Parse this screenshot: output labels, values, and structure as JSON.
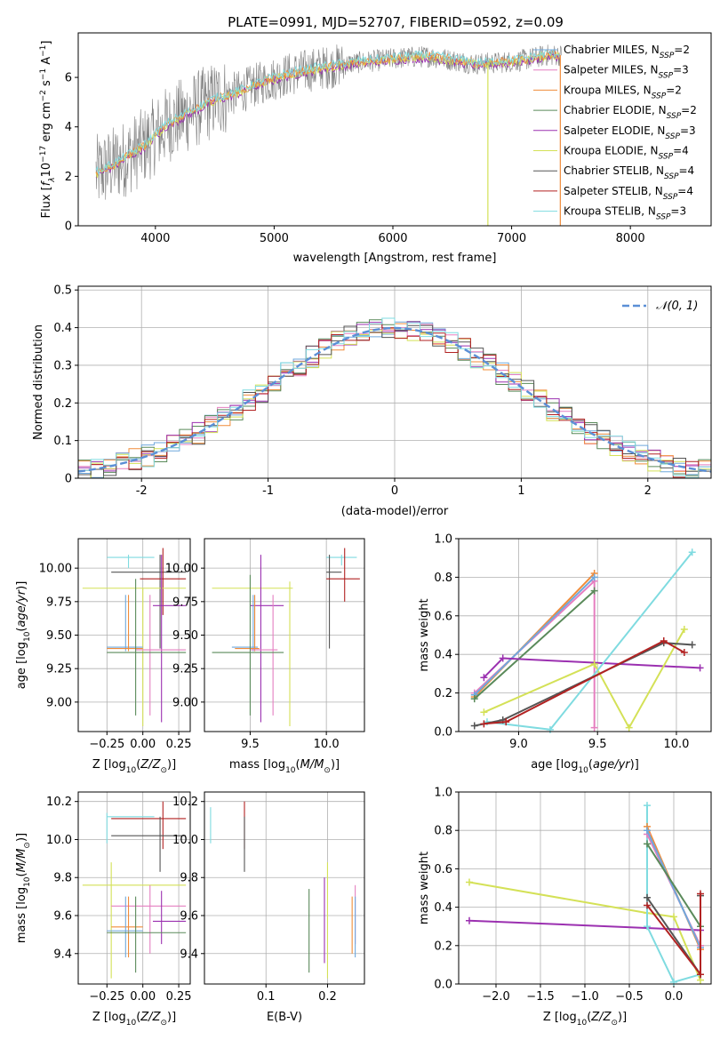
{
  "figure": {
    "title": "PLATE=0991, MJD=52707, FIBERID=0592, z=0.09"
  },
  "colors": {
    "chabrier_miles": "#6fa8dc",
    "salpeter_miles": "#e57fc0",
    "kroupa_miles": "#f08c3a",
    "chabrier_elodie": "#5a8a5a",
    "salpeter_elodie": "#9b30b0",
    "kroupa_elodie": "#d4e157",
    "chabrier_stelib": "#555555",
    "salpeter_stelib": "#b22222",
    "kroupa_stelib": "#7fdbe0",
    "data": "#808080",
    "normal": "#5b8fd6"
  },
  "chart_data": [
    {
      "id": "spectrum",
      "type": "line",
      "xlabel": "wavelength [Angstrom, rest frame]",
      "ylabel": "Flux [f_λ10^-17 erg cm^-2 s^-1 A^-1]",
      "xlim": [
        3350,
        8680
      ],
      "ylim": [
        0,
        7.8
      ],
      "xticks": [
        4000,
        5000,
        6000,
        7000,
        8000
      ],
      "yticks": [
        0,
        2,
        4,
        6
      ],
      "grid": false,
      "legend_position": "right",
      "legend": [
        {
          "label": "Chabrier MILES, N_SSP=2",
          "color_key": "chabrier_miles"
        },
        {
          "label": "Salpeter MILES, N_SSP=3",
          "color_key": "salpeter_miles"
        },
        {
          "label": "Kroupa MILES, N_SSP=2",
          "color_key": "kroupa_miles"
        },
        {
          "label": "Chabrier ELODIE, N_SSP=2",
          "color_key": "chabrier_elodie"
        },
        {
          "label": "Salpeter ELODIE, N_SSP=3",
          "color_key": "salpeter_elodie"
        },
        {
          "label": "Kroupa ELODIE, N_SSP=4",
          "color_key": "kroupa_elodie"
        },
        {
          "label": "Chabrier STELIB, N_SSP=4",
          "color_key": "chabrier_stelib"
        },
        {
          "label": "Salpeter STELIB, N_SSP=4",
          "color_key": "salpeter_stelib"
        },
        {
          "label": "Kroupa STELIB, N_SSP=3",
          "color_key": "kroupa_stelib"
        }
      ],
      "model_continuum": {
        "x": [
          3500,
          3700,
          3900,
          4100,
          4300,
          4500,
          4700,
          4900,
          5100,
          5300,
          5500,
          5700,
          5900,
          6100,
          6300,
          6500,
          6700,
          6900,
          7100,
          7300,
          7400
        ],
        "y": [
          2.1,
          2.6,
          3.2,
          4.1,
          4.6,
          5.1,
          5.4,
          5.8,
          6.1,
          6.3,
          6.45,
          6.6,
          6.7,
          6.8,
          6.85,
          6.7,
          6.55,
          6.6,
          6.7,
          6.9,
          6.9
        ]
      }
    },
    {
      "id": "residuals",
      "type": "histogram",
      "xlabel": "(data-model)/error",
      "ylabel": "Normed distribution",
      "xlim": [
        -2.5,
        2.5
      ],
      "ylim": [
        0,
        0.51
      ],
      "xticks": [
        -2,
        -1,
        0,
        1,
        2
      ],
      "yticks": [
        0.0,
        0.1,
        0.2,
        0.3,
        0.4,
        0.5
      ],
      "grid": true,
      "legend_position": "top-right",
      "legend": [
        {
          "label": "𝒩(0, 1)",
          "color_key": "normal",
          "style": "dashed"
        }
      ]
    },
    {
      "id": "age_vs_Z",
      "type": "errorbar",
      "xlabel": "Z [log10(Z/Z⊙)]",
      "ylabel": "age [log10(age/yr)]",
      "xlim": [
        -0.45,
        0.33
      ],
      "ylim": [
        8.78,
        10.22
      ],
      "xticks": [
        -0.25,
        0.0,
        0.25
      ],
      "xticklabels": [
        "−0.25",
        "0.00",
        "0.25"
      ],
      "yticks": [
        9.0,
        9.25,
        9.5,
        9.75,
        10.0
      ],
      "yticklabels": [
        "9.00",
        "9.25",
        "9.50",
        "9.75",
        "10.00"
      ],
      "grid": true,
      "points": [
        {
          "c": "kroupa_stelib",
          "x": -0.1,
          "xe": [
            -0.25,
            0.08
          ],
          "y": 10.08,
          "ye": [
            10.0,
            10.1
          ]
        },
        {
          "c": "chabrier_stelib",
          "x": 0.12,
          "xe": [
            -0.22,
            0.3
          ],
          "y": 9.97,
          "ye": [
            9.4,
            10.1
          ]
        },
        {
          "c": "salpeter_stelib",
          "x": 0.14,
          "xe": [
            -0.02,
            0.3
          ],
          "y": 9.92,
          "ye": [
            9.65,
            10.15
          ]
        },
        {
          "c": "kroupa_elodie",
          "x": 0.0,
          "xe": [
            -0.42,
            0.3
          ],
          "y": 9.85,
          "ye": [
            8.82,
            9.85
          ]
        },
        {
          "c": "salpeter_elodie",
          "x": 0.13,
          "xe": [
            0.07,
            0.3
          ],
          "y": 9.72,
          "ye": [
            8.85,
            10.1
          ]
        },
        {
          "c": "chabrier_miles",
          "x": -0.12,
          "xe": [
            -0.25,
            0.0
          ],
          "y": 9.41,
          "ye": [
            9.38,
            9.8
          ]
        },
        {
          "c": "kroupa_miles",
          "x": -0.1,
          "xe": [
            -0.25,
            0.0
          ],
          "y": 9.4,
          "ye": [
            9.38,
            9.8
          ]
        },
        {
          "c": "salpeter_miles",
          "x": 0.05,
          "xe": [
            -0.05,
            0.3
          ],
          "y": 9.39,
          "ye": [
            8.9,
            9.8
          ]
        },
        {
          "c": "chabrier_elodie",
          "x": -0.05,
          "xe": [
            -0.25,
            0.3
          ],
          "y": 9.37,
          "ye": [
            8.9,
            9.92
          ]
        }
      ]
    },
    {
      "id": "age_vs_mass",
      "type": "errorbar",
      "xlabel": "mass [log10(M/M⊙)]",
      "ylabel": "",
      "xlim": [
        9.2,
        10.25
      ],
      "ylim": [
        8.78,
        10.22
      ],
      "xticks": [
        9.5,
        10.0
      ],
      "xticklabels": [
        "9.5",
        "10.0"
      ],
      "yticks": [
        9.0,
        9.25,
        9.5,
        9.75,
        10.0
      ],
      "yticklabels": [
        "9.00",
        "9.25",
        "9.50",
        "9.75",
        "10.00"
      ],
      "grid": true,
      "points": [
        {
          "c": "kroupa_stelib",
          "x": 10.1,
          "xe": [
            10.0,
            10.2
          ],
          "y": 10.08,
          "ye": [
            10.02,
            10.1
          ]
        },
        {
          "c": "chabrier_stelib",
          "x": 10.02,
          "xe": [
            10.0,
            10.1
          ],
          "y": 9.97,
          "ye": [
            9.4,
            10.1
          ]
        },
        {
          "c": "salpeter_stelib",
          "x": 10.12,
          "xe": [
            10.0,
            10.22
          ],
          "y": 9.92,
          "ye": [
            9.75,
            10.15
          ]
        },
        {
          "c": "kroupa_elodie",
          "x": 9.76,
          "xe": [
            9.25,
            9.78
          ],
          "y": 9.85,
          "ye": [
            8.82,
            9.9
          ]
        },
        {
          "c": "salpeter_elodie",
          "x": 9.57,
          "xe": [
            9.5,
            9.72
          ],
          "y": 9.72,
          "ye": [
            8.85,
            10.1
          ]
        },
        {
          "c": "chabrier_miles",
          "x": 9.52,
          "xe": [
            9.38,
            9.55
          ],
          "y": 9.41,
          "ye": [
            9.38,
            9.8
          ]
        },
        {
          "c": "kroupa_miles",
          "x": 9.53,
          "xe": [
            9.4,
            9.56
          ],
          "y": 9.4,
          "ye": [
            9.38,
            9.8
          ]
        },
        {
          "c": "salpeter_miles",
          "x": 9.65,
          "xe": [
            9.5,
            9.68
          ],
          "y": 9.39,
          "ye": [
            8.9,
            9.8
          ]
        },
        {
          "c": "chabrier_elodie",
          "x": 9.5,
          "xe": [
            9.25,
            9.72
          ],
          "y": 9.37,
          "ye": [
            8.9,
            9.95
          ]
        }
      ]
    },
    {
      "id": "weight_vs_age",
      "type": "line",
      "xlabel": "age [log10(age/yr)]",
      "ylabel": "mass weight",
      "xlim": [
        8.62,
        10.22
      ],
      "ylim": [
        0,
        1.0
      ],
      "xticks": [
        9.0,
        9.5,
        10.0
      ],
      "xticklabels": [
        "9.0",
        "9.5",
        "10.0"
      ],
      "yticks": [
        0.0,
        0.2,
        0.4,
        0.6,
        0.8,
        1.0
      ],
      "yticklabels": [
        "0.0",
        "0.2",
        "0.4",
        "0.6",
        "0.8",
        "1.0"
      ],
      "grid": true,
      "series": [
        {
          "c": "kroupa_miles",
          "x": [
            8.72,
            9.48
          ],
          "y": [
            0.18,
            0.82
          ]
        },
        {
          "c": "salpeter_miles",
          "x": [
            8.72,
            9.48,
            9.48
          ],
          "y": [
            0.2,
            0.78,
            0.02
          ]
        },
        {
          "c": "chabrier_miles",
          "x": [
            8.72,
            9.48
          ],
          "y": [
            0.19,
            0.8
          ]
        },
        {
          "c": "chabrier_elodie",
          "x": [
            8.72,
            9.48
          ],
          "y": [
            0.17,
            0.73
          ]
        },
        {
          "c": "salpeter_elodie",
          "x": [
            8.78,
            8.9,
            10.15
          ],
          "y": [
            0.28,
            0.38,
            0.33
          ]
        },
        {
          "c": "kroupa_elodie",
          "x": [
            8.78,
            9.48,
            9.7,
            10.05
          ],
          "y": [
            0.1,
            0.35,
            0.02,
            0.53
          ]
        },
        {
          "c": "kroupa_stelib",
          "x": [
            8.8,
            9.2,
            10.1
          ],
          "y": [
            0.05,
            0.01,
            0.93
          ]
        },
        {
          "c": "chabrier_stelib",
          "x": [
            8.72,
            8.9,
            9.92,
            10.1
          ],
          "y": [
            0.03,
            0.06,
            0.46,
            0.45
          ]
        },
        {
          "c": "salpeter_stelib",
          "x": [
            8.78,
            8.92,
            9.92,
            10.05
          ],
          "y": [
            0.04,
            0.05,
            0.47,
            0.41
          ]
        }
      ]
    },
    {
      "id": "mass_vs_Z",
      "type": "errorbar",
      "xlabel": "Z [log10(Z/Z⊙)]",
      "ylabel": "mass [log10(M/M⊙)]",
      "xlim": [
        -0.45,
        0.33
      ],
      "ylim": [
        9.24,
        10.25
      ],
      "xticks": [
        -0.25,
        0.0,
        0.25
      ],
      "xticklabels": [
        "−0.25",
        "0.00",
        "0.25"
      ],
      "yticks": [
        9.4,
        9.6,
        9.8,
        10.0,
        10.2
      ],
      "yticklabels": [
        "9.4",
        "9.6",
        "9.8",
        "10.0",
        "10.2"
      ],
      "grid": true,
      "points": [
        {
          "c": "kroupa_stelib",
          "x": -0.25,
          "xe": [
            -0.25,
            0.08
          ],
          "y": 10.12,
          "ye": [
            9.98,
            10.14
          ]
        },
        {
          "c": "salpeter_stelib",
          "x": 0.14,
          "xe": [
            -0.22,
            0.3
          ],
          "y": 10.11,
          "ye": [
            9.95,
            10.2
          ]
        },
        {
          "c": "chabrier_stelib",
          "x": 0.12,
          "xe": [
            -0.22,
            0.3
          ],
          "y": 10.02,
          "ye": [
            9.83,
            10.12
          ]
        },
        {
          "c": "kroupa_elodie",
          "x": -0.22,
          "xe": [
            -0.42,
            0.3
          ],
          "y": 9.76,
          "ye": [
            9.27,
            9.88
          ]
        },
        {
          "c": "salpeter_miles",
          "x": 0.05,
          "xe": [
            -0.22,
            0.3
          ],
          "y": 9.65,
          "ye": [
            9.4,
            9.76
          ]
        },
        {
          "c": "salpeter_elodie",
          "x": 0.13,
          "xe": [
            0.07,
            0.3
          ],
          "y": 9.57,
          "ye": [
            9.45,
            9.73
          ]
        },
        {
          "c": "kroupa_miles",
          "x": -0.1,
          "xe": [
            -0.22,
            0.0
          ],
          "y": 9.54,
          "ye": [
            9.38,
            9.7
          ]
        },
        {
          "c": "chabrier_miles",
          "x": -0.12,
          "xe": [
            -0.25,
            0.0
          ],
          "y": 9.52,
          "ye": [
            9.38,
            9.7
          ]
        },
        {
          "c": "chabrier_elodie",
          "x": -0.05,
          "xe": [
            -0.25,
            0.3
          ],
          "y": 9.51,
          "ye": [
            9.3,
            9.7
          ]
        }
      ]
    },
    {
      "id": "mass_vs_ebv",
      "type": "errorbar",
      "xlabel": "E(B-V)",
      "ylabel": "",
      "xlim": [
        0.0,
        0.26
      ],
      "ylim": [
        9.24,
        10.25
      ],
      "xticks": [
        0.1,
        0.2
      ],
      "xticklabels": [
        "0.1",
        "0.2"
      ],
      "yticks": [
        9.4,
        9.6,
        9.8,
        10.0,
        10.2
      ],
      "yticklabels": [
        "9.4",
        "9.6",
        "9.8",
        "10.0",
        "10.2"
      ],
      "grid": true,
      "points": [
        {
          "c": "kroupa_stelib",
          "x": 0.01,
          "y": 10.12,
          "ye": [
            9.98,
            10.17
          ]
        },
        {
          "c": "salpeter_stelib",
          "x": 0.065,
          "y": 10.11,
          "ye": [
            9.95,
            10.2
          ]
        },
        {
          "c": "chabrier_stelib",
          "x": 0.065,
          "y": 10.02,
          "ye": [
            9.83,
            10.12
          ]
        },
        {
          "c": "kroupa_elodie",
          "x": 0.2,
          "y": 9.76,
          "ye": [
            9.27,
            9.88
          ]
        },
        {
          "c": "salpeter_miles",
          "x": 0.245,
          "y": 9.65,
          "ye": [
            9.45,
            9.76
          ]
        },
        {
          "c": "salpeter_elodie",
          "x": 0.195,
          "y": 9.57,
          "ye": [
            9.35,
            9.8
          ]
        },
        {
          "c": "chabrier_elodie",
          "x": 0.17,
          "y": 9.51,
          "ye": [
            9.3,
            9.74
          ]
        },
        {
          "c": "kroupa_miles",
          "x": 0.24,
          "y": 9.54,
          "ye": [
            9.4,
            9.7
          ]
        },
        {
          "c": "chabrier_miles",
          "x": 0.245,
          "y": 9.52,
          "ye": [
            9.38,
            9.7
          ]
        }
      ]
    },
    {
      "id": "weight_vs_Z",
      "type": "line",
      "xlabel": "Z [log10(Z/Z⊙)]",
      "ylabel": "mass weight",
      "xlim": [
        -2.42,
        0.42
      ],
      "ylim": [
        0,
        1.0
      ],
      "xticks": [
        -2.0,
        -1.5,
        -1.0,
        -0.5,
        0.0
      ],
      "xticklabels": [
        "−2.0",
        "−1.5",
        "−1.0",
        "−0.5",
        "0.0"
      ],
      "yticks": [
        0.0,
        0.2,
        0.4,
        0.6,
        0.8,
        1.0
      ],
      "yticklabels": [
        "0.0",
        "0.2",
        "0.4",
        "0.6",
        "0.8",
        "1.0"
      ],
      "grid": true,
      "series": [
        {
          "c": "kroupa_elodie",
          "x": [
            -2.3,
            -0.3,
            0.0,
            0.3
          ],
          "y": [
            0.53,
            0.37,
            0.35,
            0.02
          ]
        },
        {
          "c": "salpeter_elodie",
          "x": [
            -2.3,
            0.3
          ],
          "y": [
            0.33,
            0.28
          ]
        },
        {
          "c": "kroupa_stelib",
          "x": [
            -0.3,
            -0.3,
            0.0,
            0.3
          ],
          "y": [
            0.93,
            0.3,
            0.01,
            0.05
          ]
        },
        {
          "c": "kroupa_miles",
          "x": [
            -0.3,
            0.3
          ],
          "y": [
            0.82,
            0.18
          ]
        },
        {
          "c": "salpeter_miles",
          "x": [
            -0.3,
            0.3
          ],
          "y": [
            0.78,
            0.2
          ]
        },
        {
          "c": "chabrier_miles",
          "x": [
            -0.3,
            0.3
          ],
          "y": [
            0.8,
            0.19
          ]
        },
        {
          "c": "chabrier_elodie",
          "x": [
            -0.3,
            0.3
          ],
          "y": [
            0.73,
            0.3
          ]
        },
        {
          "c": "chabrier_stelib",
          "x": [
            -0.3,
            0.3,
            0.3
          ],
          "y": [
            0.45,
            0.05,
            0.46
          ]
        },
        {
          "c": "salpeter_stelib",
          "x": [
            -0.3,
            0.3,
            0.3
          ],
          "y": [
            0.41,
            0.05,
            0.47
          ]
        }
      ]
    }
  ]
}
